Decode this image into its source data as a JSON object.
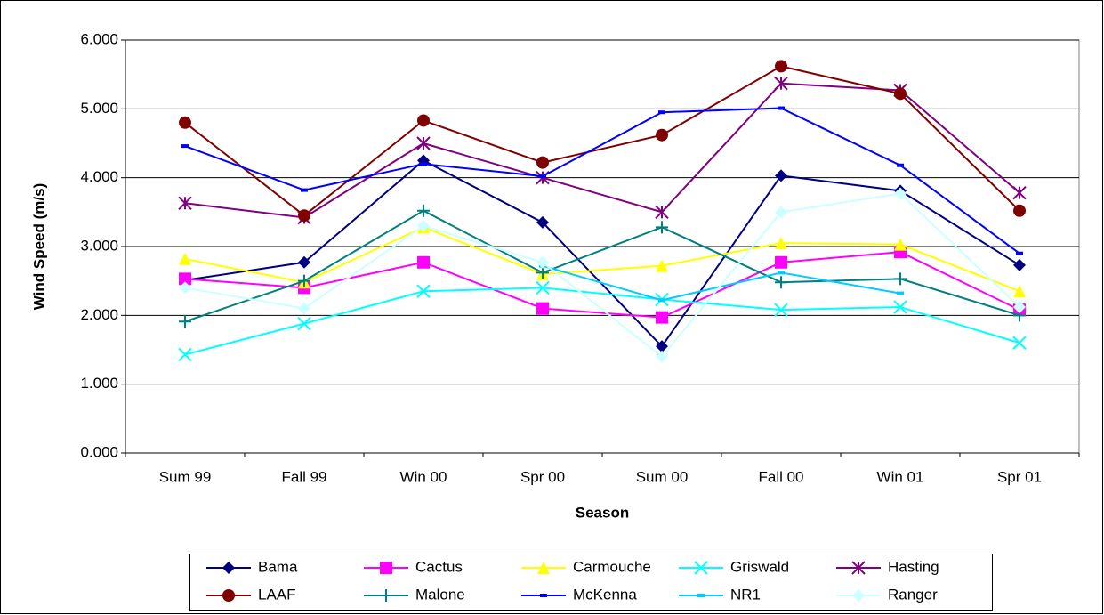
{
  "chart_data": {
    "type": "line",
    "y_label": "Wind Speed (m/s)",
    "x_label": "Season",
    "categories": [
      "Sum 99",
      "Fall 99",
      "Win 00",
      "Spr 00",
      "Sum 00",
      "Fall 00",
      "Win  01",
      "Spr 01"
    ],
    "ylim": [
      0,
      6
    ],
    "yticks": [
      {
        "value": 0,
        "label": "0.000"
      },
      {
        "value": 1,
        "label": "1.000"
      },
      {
        "value": 2,
        "label": "2.000"
      },
      {
        "value": 3,
        "label": "3.000"
      },
      {
        "value": 4,
        "label": "4.000"
      },
      {
        "value": 5,
        "label": "5.000"
      },
      {
        "value": 6,
        "label": "6.000"
      }
    ],
    "grid": true,
    "series": [
      {
        "name": "Bama",
        "color": "#000080",
        "marker": "diamond",
        "values": [
          2.51,
          2.77,
          4.25,
          3.35,
          1.55,
          4.03,
          3.81,
          2.73
        ]
      },
      {
        "name": "Cactus",
        "color": "#ff00ff",
        "marker": "square",
        "values": [
          2.53,
          2.4,
          2.77,
          2.1,
          1.97,
          2.77,
          2.92,
          2.08
        ]
      },
      {
        "name": "Carmouche",
        "color": "#ffff00",
        "marker": "triangle",
        "values": [
          2.82,
          2.48,
          3.28,
          2.6,
          2.72,
          3.05,
          3.03,
          2.35
        ]
      },
      {
        "name": "Griswald",
        "color": "#00ffff",
        "marker": "x",
        "values": [
          1.43,
          1.88,
          2.35,
          2.4,
          2.23,
          2.08,
          2.12,
          1.6
        ]
      },
      {
        "name": "Hasting",
        "color": "#800080",
        "marker": "star",
        "values": [
          3.63,
          3.42,
          4.5,
          4.0,
          3.5,
          5.37,
          5.27,
          3.78
        ]
      },
      {
        "name": "LAAF",
        "color": "#800000",
        "marker": "circle",
        "values": [
          4.8,
          3.45,
          4.83,
          4.22,
          4.62,
          5.62,
          5.22,
          3.52
        ]
      },
      {
        "name": "Malone",
        "color": "#008080",
        "marker": "plus",
        "values": [
          1.91,
          2.5,
          3.52,
          2.62,
          3.28,
          2.48,
          2.53,
          2.0
        ]
      },
      {
        "name": "McKenna",
        "color": "#0000ff",
        "marker": "dash",
        "values": [
          4.46,
          3.82,
          4.2,
          4.02,
          4.95,
          5.01,
          4.18,
          2.9
        ]
      },
      {
        "name": "NR1",
        "color": "#00ccff",
        "marker": "dash",
        "values": [
          null,
          null,
          null,
          2.72,
          2.22,
          2.62,
          2.32,
          null
        ]
      },
      {
        "name": "Ranger",
        "color": "#ccffff",
        "marker": "diamond",
        "values": [
          2.4,
          2.1,
          3.3,
          2.77,
          1.4,
          3.5,
          3.77,
          2.12
        ]
      }
    ]
  }
}
